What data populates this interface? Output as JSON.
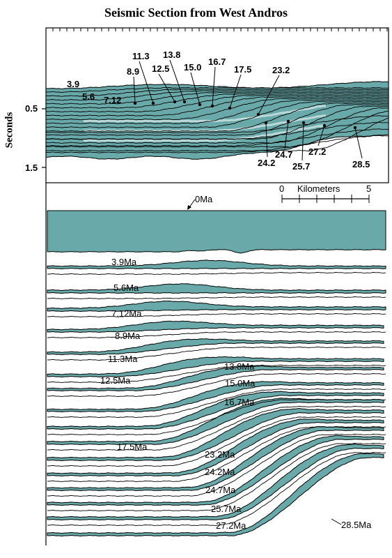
{
  "title": "Seismic Section from West Andros",
  "y_axis": {
    "label": "Seconds",
    "ticks": [
      "0.5",
      "1.5"
    ]
  },
  "fill_color": "#6aa9a9",
  "top_panel": {
    "labels_upper": [
      "3.9",
      "5.6",
      "7.12",
      "8.9",
      "11.3",
      "12.5",
      "13.8",
      "15.0",
      "16.7",
      "17.5",
      "23.2"
    ],
    "labels_lower": [
      "24.2",
      "24.7",
      "25.7",
      "27.2",
      "28.5"
    ]
  },
  "scale_bar": {
    "label": "Kilometers",
    "start": "0",
    "end": "5"
  },
  "bottom_panel": {
    "top_label": "0Ma",
    "labels": [
      "3.9Ma",
      "5.6Ma",
      "7.12Ma",
      "8.9Ma",
      "11.3Ma",
      "12.5Ma",
      "13.8Ma",
      "15.0Ma",
      "16.7Ma",
      "17.5Ma",
      "23.2Ma",
      "24.2Ma",
      "24.7Ma",
      "25.7Ma",
      "27.2Ma",
      "28.5Ma"
    ]
  }
}
